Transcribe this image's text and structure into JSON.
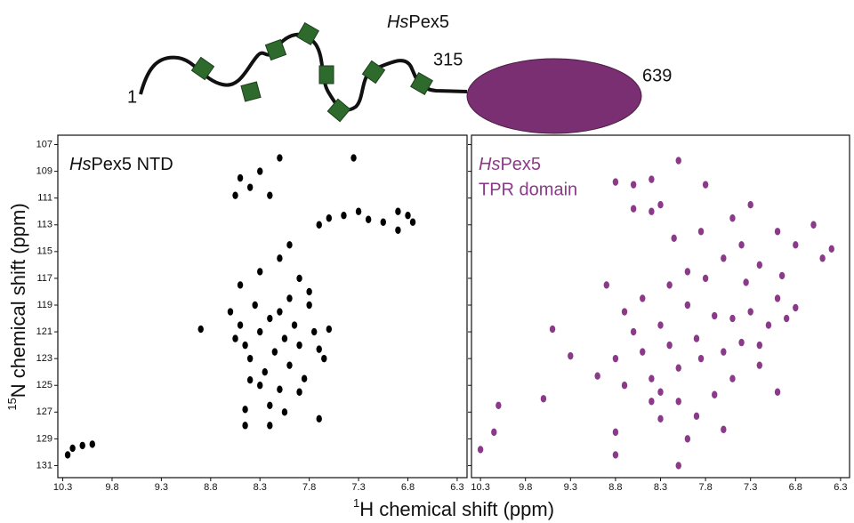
{
  "diagram": {
    "title_italic": "Hs",
    "title_rest": "Pex5",
    "start": 1,
    "mid": 315,
    "end": 639
  },
  "axis_labels": {
    "y_sup": "15",
    "y_text": "N chemical shift (ppm)",
    "x_sup": "1",
    "x_text": "H chemical shift (ppm)"
  },
  "chart_data": [
    {
      "type": "scatter",
      "label_italic": "Hs",
      "label_rest": "Pex5 NTD",
      "color": "#000000",
      "xlim": [
        10.35,
        6.2
      ],
      "ylim": [
        106.3,
        131.9
      ],
      "xticks": [
        10.3,
        9.8,
        9.3,
        8.8,
        8.3,
        7.8,
        7.3,
        6.8,
        6.3
      ],
      "yticks": [
        107,
        109,
        111,
        113,
        115,
        117,
        119,
        121,
        123,
        125,
        127,
        129,
        131
      ],
      "x": [
        10.25,
        10.2,
        10.1,
        10.0,
        8.9,
        8.6,
        8.5,
        8.45,
        8.4,
        8.35,
        8.3,
        8.25,
        8.2,
        8.15,
        8.1,
        8.05,
        8.0,
        7.95,
        7.9,
        7.85,
        7.8,
        7.75,
        7.65,
        7.6,
        8.3,
        8.1,
        7.9,
        8.2,
        8.05,
        8.2,
        8.45,
        8.45,
        7.7,
        8.5,
        8.3,
        8.1,
        7.9,
        7.8,
        8.0,
        8.5,
        8.4,
        8.3,
        8.1,
        8.55,
        8.2,
        7.35,
        7.6,
        7.45,
        7.3,
        7.2,
        7.05,
        6.9,
        6.8,
        6.75,
        6.9,
        7.7,
        8.55,
        8.0,
        7.7,
        8.4
      ],
      "values": [
        130.2,
        129.7,
        129.5,
        129.4,
        120.8,
        119.5,
        120.5,
        122,
        123,
        119,
        121,
        124,
        120,
        122.5,
        119.5,
        121.5,
        123.5,
        120.5,
        122,
        124.5,
        119,
        121,
        123,
        120.8,
        125,
        125.3,
        125.5,
        126.5,
        127,
        128,
        126.8,
        128,
        127.5,
        117.5,
        116.5,
        115.5,
        117,
        118,
        114.5,
        109.5,
        110.2,
        109,
        108,
        110.8,
        110.8,
        108,
        112.5,
        112.3,
        112,
        112.6,
        112.8,
        112,
        112.3,
        112.8,
        113.4,
        113,
        121.5,
        118.5,
        122.3,
        124.6
      ]
    },
    {
      "type": "scatter",
      "label_italic": "Hs",
      "label_rest": "Pex5",
      "label_line2": "TPR domain",
      "color": "#8a3a88",
      "xlim": [
        10.4,
        6.2
      ],
      "ylim": [
        106.3,
        131.9
      ],
      "xticks": [
        10.3,
        9.8,
        9.3,
        8.8,
        8.3,
        7.8,
        7.3,
        6.8,
        6.3
      ],
      "x": [
        10.3,
        10.1,
        10.15,
        9.3,
        9.0,
        9.5,
        8.8,
        8.8,
        8.8,
        8.7,
        8.6,
        8.5,
        8.4,
        8.3,
        8.2,
        8.1,
        8.3,
        8.0,
        7.9,
        7.85,
        7.7,
        7.6,
        7.5,
        7.4,
        7.3,
        7.2,
        7.0,
        7.1,
        8.2,
        8.0,
        7.8,
        7.6,
        7.4,
        7.2,
        7.0,
        6.8,
        6.6,
        6.5,
        6.4,
        7.5,
        7.3,
        8.6,
        8.4,
        8.6,
        8.4,
        8.3,
        8.1,
        8.8,
        7.8,
        8.3,
        8.1,
        8.4,
        8.0,
        7.9,
        8.1,
        7.6,
        7.5,
        7.2,
        6.9,
        6.8,
        8.7,
        8.9,
        9.6,
        8.5,
        7.7,
        7.35,
        6.95,
        7.85,
        8.15,
        7.0
      ],
      "values": [
        129.8,
        126.5,
        128.5,
        122.8,
        124.3,
        120.8,
        130.2,
        128.5,
        123,
        119.5,
        121,
        122.5,
        124.5,
        120.5,
        122,
        123.7,
        125.5,
        119,
        121.5,
        123,
        119.8,
        122.5,
        120,
        121.8,
        119.5,
        122,
        118.5,
        120.5,
        117.5,
        116.5,
        117,
        115.5,
        114.5,
        116,
        113.5,
        114.5,
        113,
        115.5,
        114.8,
        112.5,
        111.5,
        110,
        109.6,
        111.8,
        112,
        111.5,
        108.2,
        109.8,
        110,
        127.5,
        126.2,
        126.2,
        129,
        127.3,
        131,
        128.3,
        124.5,
        123.5,
        120,
        119.2,
        125,
        117.5,
        126,
        118.5,
        125.7,
        117.3,
        116.8,
        113.5,
        114,
        125.5
      ]
    }
  ]
}
